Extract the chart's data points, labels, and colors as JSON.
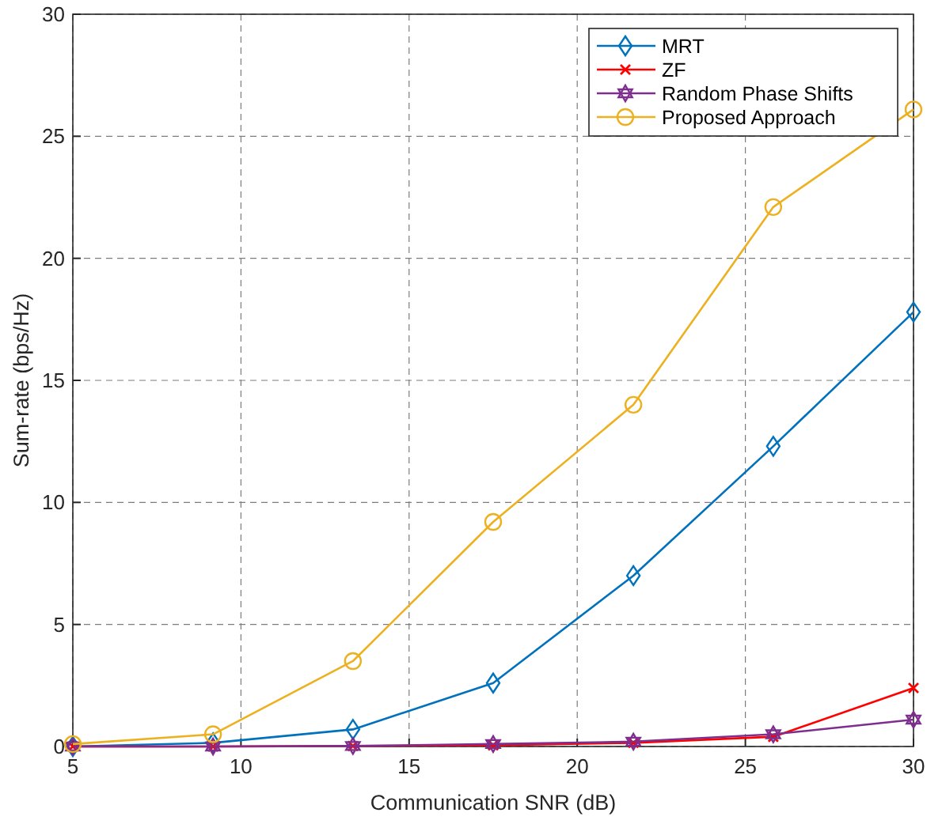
{
  "chart_data": {
    "type": "line",
    "xlabel": "Communication SNR (dB)",
    "ylabel": "Sum-rate (bps/Hz)",
    "x": [
      5,
      9.17,
      13.33,
      17.5,
      21.67,
      25.83,
      30
    ],
    "xlim": [
      5,
      30
    ],
    "xticks": [
      5,
      10,
      15,
      20,
      25,
      30
    ],
    "ylim": [
      0,
      30
    ],
    "yticks": [
      0,
      5,
      10,
      15,
      20,
      25,
      30
    ],
    "grid": true,
    "legend": "top right",
    "line_style": "solid",
    "series": [
      {
        "name": "MRT",
        "color": "#0072bd",
        "marker": "diamond",
        "values": [
          0,
          0.15,
          0.7,
          2.6,
          7.0,
          12.3,
          17.8
        ]
      },
      {
        "name": "ZF",
        "color": "#ff0000",
        "marker": "cross",
        "values": [
          0,
          0,
          0.02,
          0.05,
          0.15,
          0.4,
          2.4
        ]
      },
      {
        "name": "Random Phase Shifts",
        "color": "#7e2f8e",
        "marker": "star",
        "values": [
          0,
          0,
          0.02,
          0.1,
          0.2,
          0.5,
          1.1
        ]
      },
      {
        "name": "Proposed Approach",
        "color": "#edb120",
        "marker": "circle",
        "values": [
          0.1,
          0.5,
          3.5,
          9.2,
          14.0,
          22.1,
          26.1
        ]
      }
    ]
  }
}
